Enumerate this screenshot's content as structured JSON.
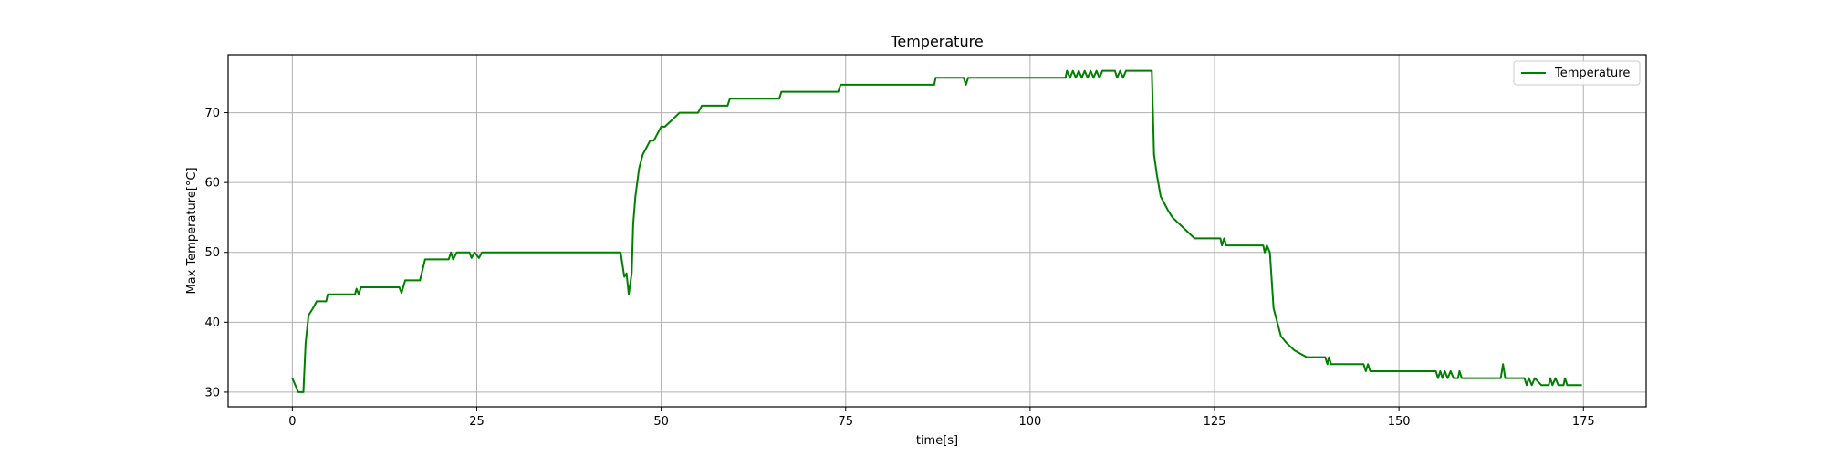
{
  "chart_data": {
    "type": "line",
    "title": "Temperature",
    "xlabel": "time[s]",
    "ylabel": "Max Temperature[°C]",
    "xlim": [
      -8.7,
      183.5
    ],
    "ylim": [
      27.9,
      78.3
    ],
    "xticks": [
      0,
      25,
      50,
      75,
      100,
      125,
      150,
      175
    ],
    "yticks": [
      30,
      40,
      50,
      60,
      70
    ],
    "grid": true,
    "legend_position": "top-right",
    "series": [
      {
        "name": "Temperature",
        "color": "#008000",
        "points": [
          [
            0,
            32
          ],
          [
            0.8,
            30
          ],
          [
            1.5,
            30
          ],
          [
            1.8,
            37
          ],
          [
            2.2,
            41
          ],
          [
            2.8,
            42
          ],
          [
            3.3,
            43
          ],
          [
            4.6,
            43
          ],
          [
            4.8,
            44
          ],
          [
            8.5,
            44
          ],
          [
            8.7,
            44.8
          ],
          [
            9,
            44
          ],
          [
            9.3,
            45
          ],
          [
            14.5,
            45
          ],
          [
            14.8,
            44.2
          ],
          [
            15.3,
            46
          ],
          [
            17.3,
            46
          ],
          [
            18,
            49
          ],
          [
            21.2,
            49
          ],
          [
            21.5,
            50
          ],
          [
            21.8,
            49
          ],
          [
            22.3,
            50
          ],
          [
            24,
            50
          ],
          [
            24.3,
            49.2
          ],
          [
            24.7,
            50
          ],
          [
            25.3,
            49.2
          ],
          [
            25.7,
            50
          ],
          [
            44.5,
            50
          ],
          [
            45,
            46.5
          ],
          [
            45.3,
            47
          ],
          [
            45.6,
            44
          ],
          [
            46,
            47
          ],
          [
            46.2,
            54
          ],
          [
            46.5,
            58
          ],
          [
            47,
            62
          ],
          [
            47.5,
            64
          ],
          [
            48,
            65
          ],
          [
            48.5,
            66
          ],
          [
            49,
            66
          ],
          [
            49.5,
            67
          ],
          [
            50,
            68
          ],
          [
            50.5,
            68
          ],
          [
            51.5,
            69
          ],
          [
            52.5,
            70
          ],
          [
            55,
            70
          ],
          [
            55.5,
            71
          ],
          [
            59,
            71
          ],
          [
            59.3,
            72
          ],
          [
            66,
            72
          ],
          [
            66.3,
            73
          ],
          [
            74,
            73
          ],
          [
            74.3,
            74
          ],
          [
            87,
            74
          ],
          [
            87.2,
            75
          ],
          [
            91,
            75
          ],
          [
            91.3,
            74
          ],
          [
            91.6,
            75
          ],
          [
            104.8,
            75
          ],
          [
            105,
            76
          ],
          [
            105.4,
            75
          ],
          [
            105.8,
            76
          ],
          [
            106.2,
            75
          ],
          [
            106.6,
            76
          ],
          [
            107,
            75
          ],
          [
            107.4,
            76
          ],
          [
            107.8,
            75
          ],
          [
            108.2,
            76
          ],
          [
            108.6,
            75
          ],
          [
            109,
            76
          ],
          [
            109.4,
            75
          ],
          [
            109.8,
            76
          ],
          [
            111.5,
            76
          ],
          [
            111.8,
            75
          ],
          [
            112.2,
            76
          ],
          [
            112.6,
            75
          ],
          [
            113,
            76
          ],
          [
            116.5,
            76
          ],
          [
            116.8,
            64
          ],
          [
            117.2,
            61
          ],
          [
            117.7,
            58
          ],
          [
            118.2,
            57
          ],
          [
            118.7,
            56
          ],
          [
            119.3,
            55
          ],
          [
            120.3,
            54
          ],
          [
            121.3,
            53
          ],
          [
            122.3,
            52
          ],
          [
            125.8,
            52
          ],
          [
            126,
            51
          ],
          [
            126.3,
            52
          ],
          [
            126.6,
            51
          ],
          [
            131.6,
            51
          ],
          [
            131.8,
            50
          ],
          [
            132.1,
            51
          ],
          [
            132.5,
            50
          ],
          [
            133,
            42
          ],
          [
            133.5,
            40
          ],
          [
            134,
            38
          ],
          [
            134.8,
            37
          ],
          [
            135.8,
            36
          ],
          [
            137.5,
            35
          ],
          [
            140,
            35
          ],
          [
            140.3,
            34
          ],
          [
            140.5,
            35
          ],
          [
            140.8,
            34
          ],
          [
            145.2,
            34
          ],
          [
            145.5,
            33
          ],
          [
            145.8,
            34
          ],
          [
            146.1,
            33
          ],
          [
            155,
            33
          ],
          [
            155.3,
            32
          ],
          [
            155.6,
            33
          ],
          [
            155.9,
            32
          ],
          [
            156.2,
            33
          ],
          [
            156.6,
            32
          ],
          [
            157,
            33
          ],
          [
            157.4,
            32
          ],
          [
            158,
            32
          ],
          [
            158.2,
            33
          ],
          [
            158.5,
            32
          ],
          [
            163.8,
            32
          ],
          [
            164.1,
            34
          ],
          [
            164.4,
            32
          ],
          [
            167,
            32
          ],
          [
            167.3,
            31
          ],
          [
            167.6,
            32
          ],
          [
            168,
            31
          ],
          [
            168.4,
            32
          ],
          [
            169.3,
            31
          ],
          [
            170.3,
            31
          ],
          [
            170.5,
            32
          ],
          [
            170.8,
            31
          ],
          [
            171.2,
            32
          ],
          [
            171.6,
            31
          ],
          [
            172.3,
            31
          ],
          [
            172.5,
            32
          ],
          [
            172.8,
            31
          ],
          [
            174.8,
            31
          ]
        ]
      }
    ]
  }
}
